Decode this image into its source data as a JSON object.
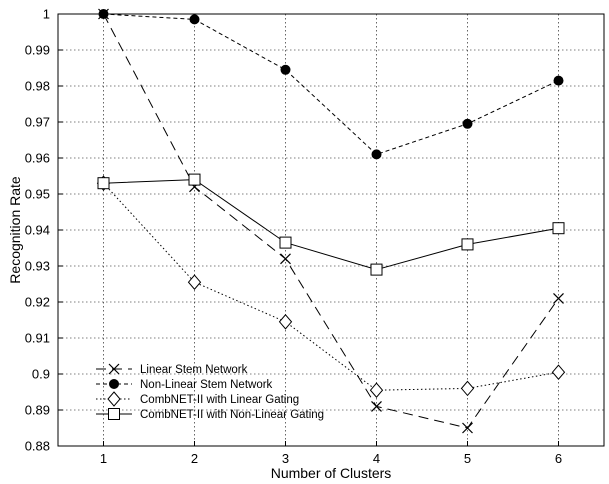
{
  "chart_data": {
    "type": "line",
    "title": "",
    "xlabel": "Number of Clusters",
    "ylabel": "Recognition Rate",
    "x": [
      1,
      2,
      3,
      4,
      5,
      6
    ],
    "xlim": [
      0.5,
      6.5
    ],
    "ylim": [
      0.88,
      1.0
    ],
    "xticks": [
      "1",
      "2",
      "3",
      "4",
      "5",
      "6"
    ],
    "yticks": [
      "0.88",
      "0.89",
      "0.9",
      "0.91",
      "0.92",
      "0.93",
      "0.94",
      "0.95",
      "0.96",
      "0.97",
      "0.98",
      "0.99",
      "1"
    ],
    "grid": true,
    "legend_position": "bottom-left",
    "series": [
      {
        "name": "Linear Stem Network",
        "marker": "x",
        "dash": "long-dash",
        "values": [
          1.0,
          0.952,
          0.932,
          0.891,
          0.885,
          0.921
        ]
      },
      {
        "name": "Non-Linear Stem Network",
        "marker": "filled-circle",
        "dash": "short-dash",
        "values": [
          1.0,
          0.9985,
          0.9845,
          0.961,
          0.9695,
          0.9815
        ]
      },
      {
        "name": "CombNET-II with Linear Gating",
        "marker": "diamond",
        "dash": "dotted",
        "values": [
          0.953,
          0.9255,
          0.9145,
          0.8955,
          0.896,
          0.9005
        ]
      },
      {
        "name": "CombNET-II with Non-Linear Gating",
        "marker": "square",
        "dash": "solid",
        "values": [
          0.953,
          0.954,
          0.9365,
          0.929,
          0.936,
          0.9405
        ]
      }
    ]
  }
}
